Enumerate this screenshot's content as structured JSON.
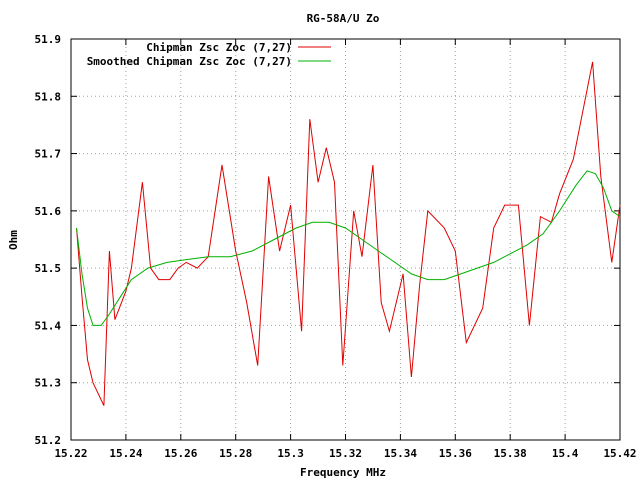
{
  "chart_data": {
    "type": "line",
    "title": "RG-58A/U Zo",
    "xlabel": "Frequency MHz",
    "ylabel": "Ohm",
    "xlim": [
      15.22,
      15.42
    ],
    "ylim": [
      51.2,
      51.9
    ],
    "xticks": [
      "15.22",
      "15.24",
      "15.26",
      "15.28",
      "15.3",
      "15.32",
      "15.34",
      "15.36",
      "15.38",
      "15.4",
      "15.42"
    ],
    "yticks": [
      "51.2",
      "51.3",
      "51.4",
      "51.5",
      "51.6",
      "51.7",
      "51.8",
      "51.9"
    ],
    "grid": true,
    "legend_position": "top-left",
    "series": [
      {
        "name": "Chipman Zsc Zoc (7,27)",
        "color": "#e00000",
        "x": [
          15.222,
          15.224,
          15.226,
          15.228,
          15.232,
          15.234,
          15.236,
          15.24,
          15.242,
          15.246,
          15.249,
          15.252,
          15.256,
          15.259,
          15.262,
          15.266,
          15.27,
          15.275,
          15.28,
          15.284,
          15.288,
          15.292,
          15.296,
          15.3,
          15.304,
          15.307,
          15.31,
          15.313,
          15.316,
          15.319,
          15.323,
          15.326,
          15.33,
          15.333,
          15.336,
          15.341,
          15.344,
          15.347,
          15.35,
          15.356,
          15.36,
          15.364,
          15.37,
          15.374,
          15.378,
          15.383,
          15.387,
          15.391,
          15.395,
          15.398,
          15.403,
          15.41,
          15.413,
          15.417,
          15.42
        ],
        "y": [
          51.57,
          51.45,
          51.34,
          51.3,
          51.26,
          51.53,
          51.41,
          51.46,
          51.5,
          51.65,
          51.5,
          51.48,
          51.48,
          51.5,
          51.51,
          51.5,
          51.52,
          51.68,
          51.53,
          51.44,
          51.33,
          51.66,
          51.53,
          51.61,
          51.39,
          51.76,
          51.65,
          51.71,
          51.65,
          51.33,
          51.6,
          51.52,
          51.68,
          51.44,
          51.39,
          51.49,
          51.31,
          51.47,
          51.6,
          51.57,
          51.53,
          51.37,
          51.43,
          51.57,
          51.61,
          51.61,
          51.4,
          51.59,
          51.58,
          51.63,
          51.69,
          51.86,
          51.66,
          51.51,
          51.61
        ]
      },
      {
        "name": "Smoothed Chipman Zsc Zoc (7,27)",
        "color": "#00b000",
        "x": [
          15.222,
          15.224,
          15.226,
          15.228,
          15.231,
          15.234,
          15.238,
          15.242,
          15.248,
          15.255,
          15.262,
          15.27,
          15.278,
          15.286,
          15.294,
          15.302,
          15.308,
          15.314,
          15.32,
          15.326,
          15.332,
          15.338,
          15.344,
          15.35,
          15.356,
          15.362,
          15.368,
          15.374,
          15.38,
          15.386,
          15.392,
          15.398,
          15.404,
          15.408,
          15.411,
          15.414,
          15.417,
          15.42
        ],
        "y": [
          51.57,
          51.49,
          51.43,
          51.4,
          51.4,
          51.42,
          51.45,
          51.48,
          51.5,
          51.51,
          51.515,
          51.52,
          51.52,
          51.53,
          51.55,
          51.57,
          51.58,
          51.58,
          51.57,
          51.55,
          51.53,
          51.51,
          51.49,
          51.48,
          51.48,
          51.49,
          51.5,
          51.51,
          51.525,
          51.54,
          51.56,
          51.6,
          51.645,
          51.67,
          51.665,
          51.64,
          51.6,
          51.59
        ]
      }
    ]
  }
}
